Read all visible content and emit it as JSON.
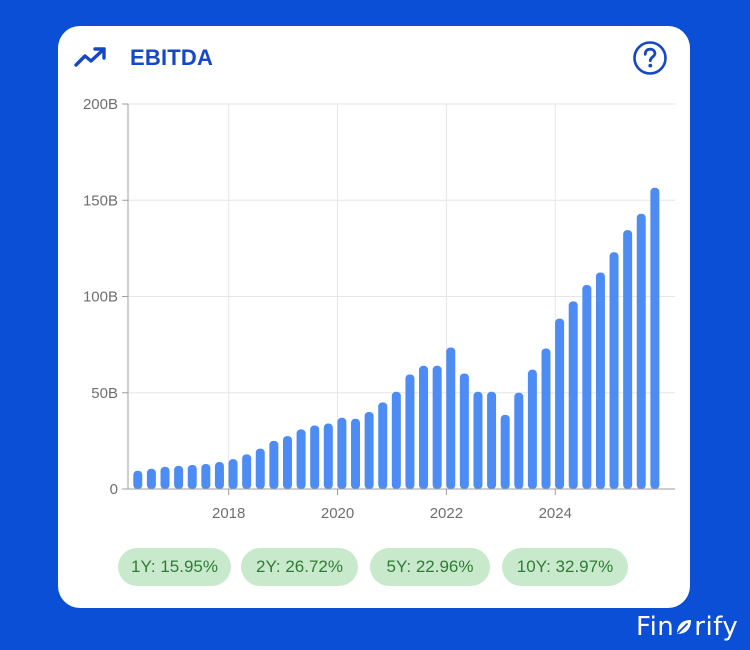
{
  "header": {
    "title": "EBITDA",
    "icon": "trend-up-icon",
    "help_icon": "help-circle-icon"
  },
  "colors": {
    "background": "#0b4fd6",
    "title": "#1547c8",
    "bar": "#4d8cf5",
    "pill_bg": "#c9e9cc",
    "pill_text": "#2f7d35"
  },
  "growth": [
    {
      "label": "1Y: 15.95%"
    },
    {
      "label": "2Y: 26.72%"
    },
    {
      "label": "5Y: 22.96%"
    },
    {
      "label": "10Y: 32.97%"
    }
  ],
  "brand": {
    "part1": "Fin",
    "part2": "rify",
    "leaf_icon": "leaf-icon"
  },
  "chart_data": {
    "type": "bar",
    "title": "EBITDA",
    "unit": "B",
    "ylim": [
      0,
      200
    ],
    "yticks": [
      0,
      50,
      100,
      150,
      200
    ],
    "ytick_labels": [
      "0",
      "50B",
      "100B",
      "150B",
      "200B"
    ],
    "xticks": [
      2018,
      2020,
      2022,
      2024
    ],
    "xlim": [
      2016.15,
      2026.2
    ],
    "grid": true,
    "x": [
      2016.33,
      2016.58,
      2016.83,
      2017.08,
      2017.33,
      2017.58,
      2017.83,
      2018.08,
      2018.33,
      2018.58,
      2018.83,
      2019.08,
      2019.33,
      2019.58,
      2019.83,
      2020.08,
      2020.33,
      2020.58,
      2020.83,
      2021.08,
      2021.33,
      2021.58,
      2021.83,
      2022.08,
      2022.33,
      2022.58,
      2022.83,
      2023.08,
      2023.33,
      2023.58,
      2023.83,
      2024.08,
      2024.33,
      2024.58,
      2024.83,
      2025.08,
      2025.33,
      2025.58,
      2025.83
    ],
    "values": [
      9.5,
      10.5,
      11.5,
      12,
      12.5,
      13,
      14,
      15.5,
      18,
      21,
      25,
      27.5,
      31,
      33,
      34,
      37,
      36.5,
      40,
      45,
      50.5,
      59.5,
      64,
      64,
      73.5,
      60,
      50.5,
      50.5,
      38.5,
      50,
      62,
      73,
      88.5,
      97.5,
      106,
      112.5,
      123,
      134.5,
      143,
      156.5
    ]
  }
}
